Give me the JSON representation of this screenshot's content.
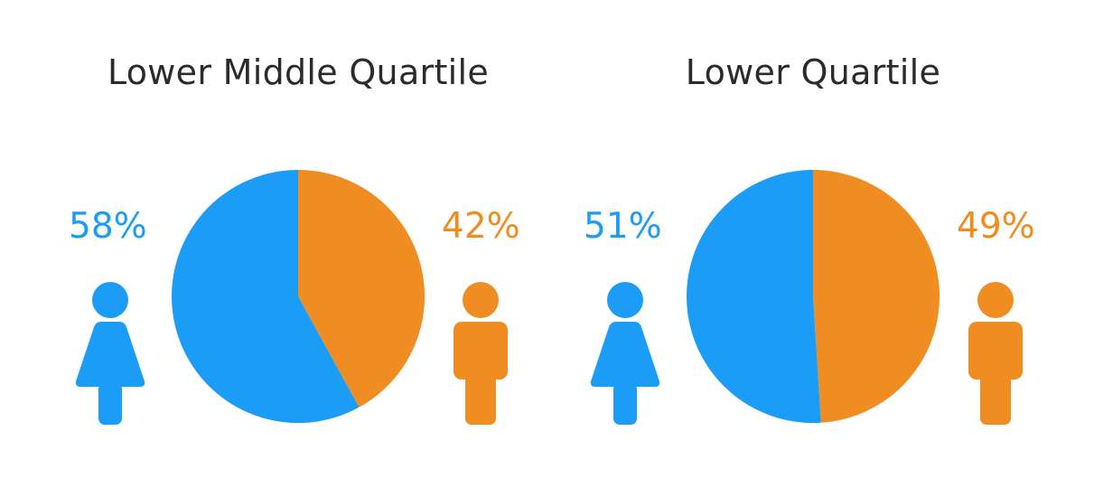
{
  "colors": {
    "female": "#1a9cf7",
    "male": "#ef8d22",
    "title": "#2b2b2b"
  },
  "chart_data": [
    {
      "type": "pie",
      "title": "Lower Middle Quartile",
      "categories": [
        "Female",
        "Male"
      ],
      "values": [
        58,
        42
      ],
      "labels": [
        "58%",
        "42%"
      ],
      "colors": [
        "#1a9cf7",
        "#ef8d22"
      ],
      "icons": [
        "female-person-icon",
        "male-person-icon"
      ]
    },
    {
      "type": "pie",
      "title": "Lower Quartile",
      "categories": [
        "Female",
        "Male"
      ],
      "values": [
        51,
        49
      ],
      "labels": [
        "51%",
        "49%"
      ],
      "colors": [
        "#1a9cf7",
        "#ef8d22"
      ],
      "icons": [
        "female-person-icon",
        "male-person-icon"
      ]
    }
  ]
}
